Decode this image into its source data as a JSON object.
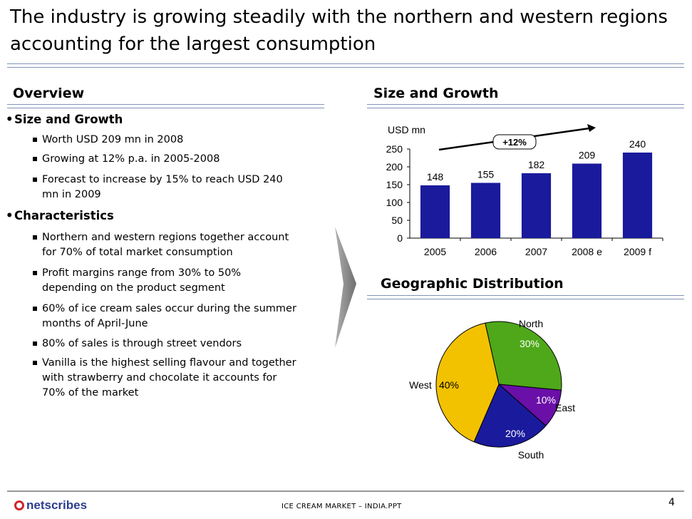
{
  "slide": {
    "title": "The industry is growing steadily with the northern and western regions accounting for the largest consumption",
    "page_number": "4",
    "footer_text": "ICE CREAM MARKET – INDIA.PPT",
    "logo_text": "netscribes"
  },
  "overview": {
    "heading": "Overview",
    "sections": [
      {
        "label": "Size and Growth",
        "items": [
          "Worth USD 209 mn in 2008",
          "Growing at 12% p.a. in 2005-2008",
          "Forecast to increase by 15% to reach USD 240 mn in 2009"
        ]
      },
      {
        "label": "Characteristics",
        "items": [
          "Northern and western regions together account for 70% of total market consumption",
          "Profit margins range from 30% to 50% depending on the product segment",
          "60% of ice cream sales occur during the summer months of April-June",
          "80% of sales is through street vendors",
          "Vanilla is the highest selling flavour and together with strawberry and chocolate it accounts for 70% of the market"
        ]
      }
    ]
  },
  "size_growth": {
    "heading": "Size and Growth"
  },
  "geo": {
    "heading": "Geographic Distribution"
  },
  "colors": {
    "bar": "#1a1a9c",
    "north": "#4ea819",
    "east": "#6a0fa8",
    "south": "#1a1a9c",
    "west": "#f2c200",
    "rule": "#7f93b8"
  },
  "chart_data": [
    {
      "type": "bar",
      "ylabel": "USD mn",
      "categories": [
        "2005",
        "2006",
        "2007",
        "2008 e",
        "2009 f"
      ],
      "values": [
        148,
        155,
        182,
        209,
        240
      ],
      "ylim": [
        0,
        250
      ],
      "yticks": [
        0,
        50,
        100,
        150,
        200,
        250
      ],
      "annotation": "+12%",
      "grid": false
    },
    {
      "type": "pie",
      "slices": [
        {
          "label": "North",
          "value": 30,
          "pct": "30%",
          "color": "#4ea819"
        },
        {
          "label": "East",
          "value": 10,
          "pct": "10%",
          "color": "#6a0fa8"
        },
        {
          "label": "South",
          "value": 20,
          "pct": "20%",
          "color": "#1a1a9c"
        },
        {
          "label": "West",
          "value": 40,
          "pct": "40%",
          "color": "#f2c200"
        }
      ]
    }
  ]
}
